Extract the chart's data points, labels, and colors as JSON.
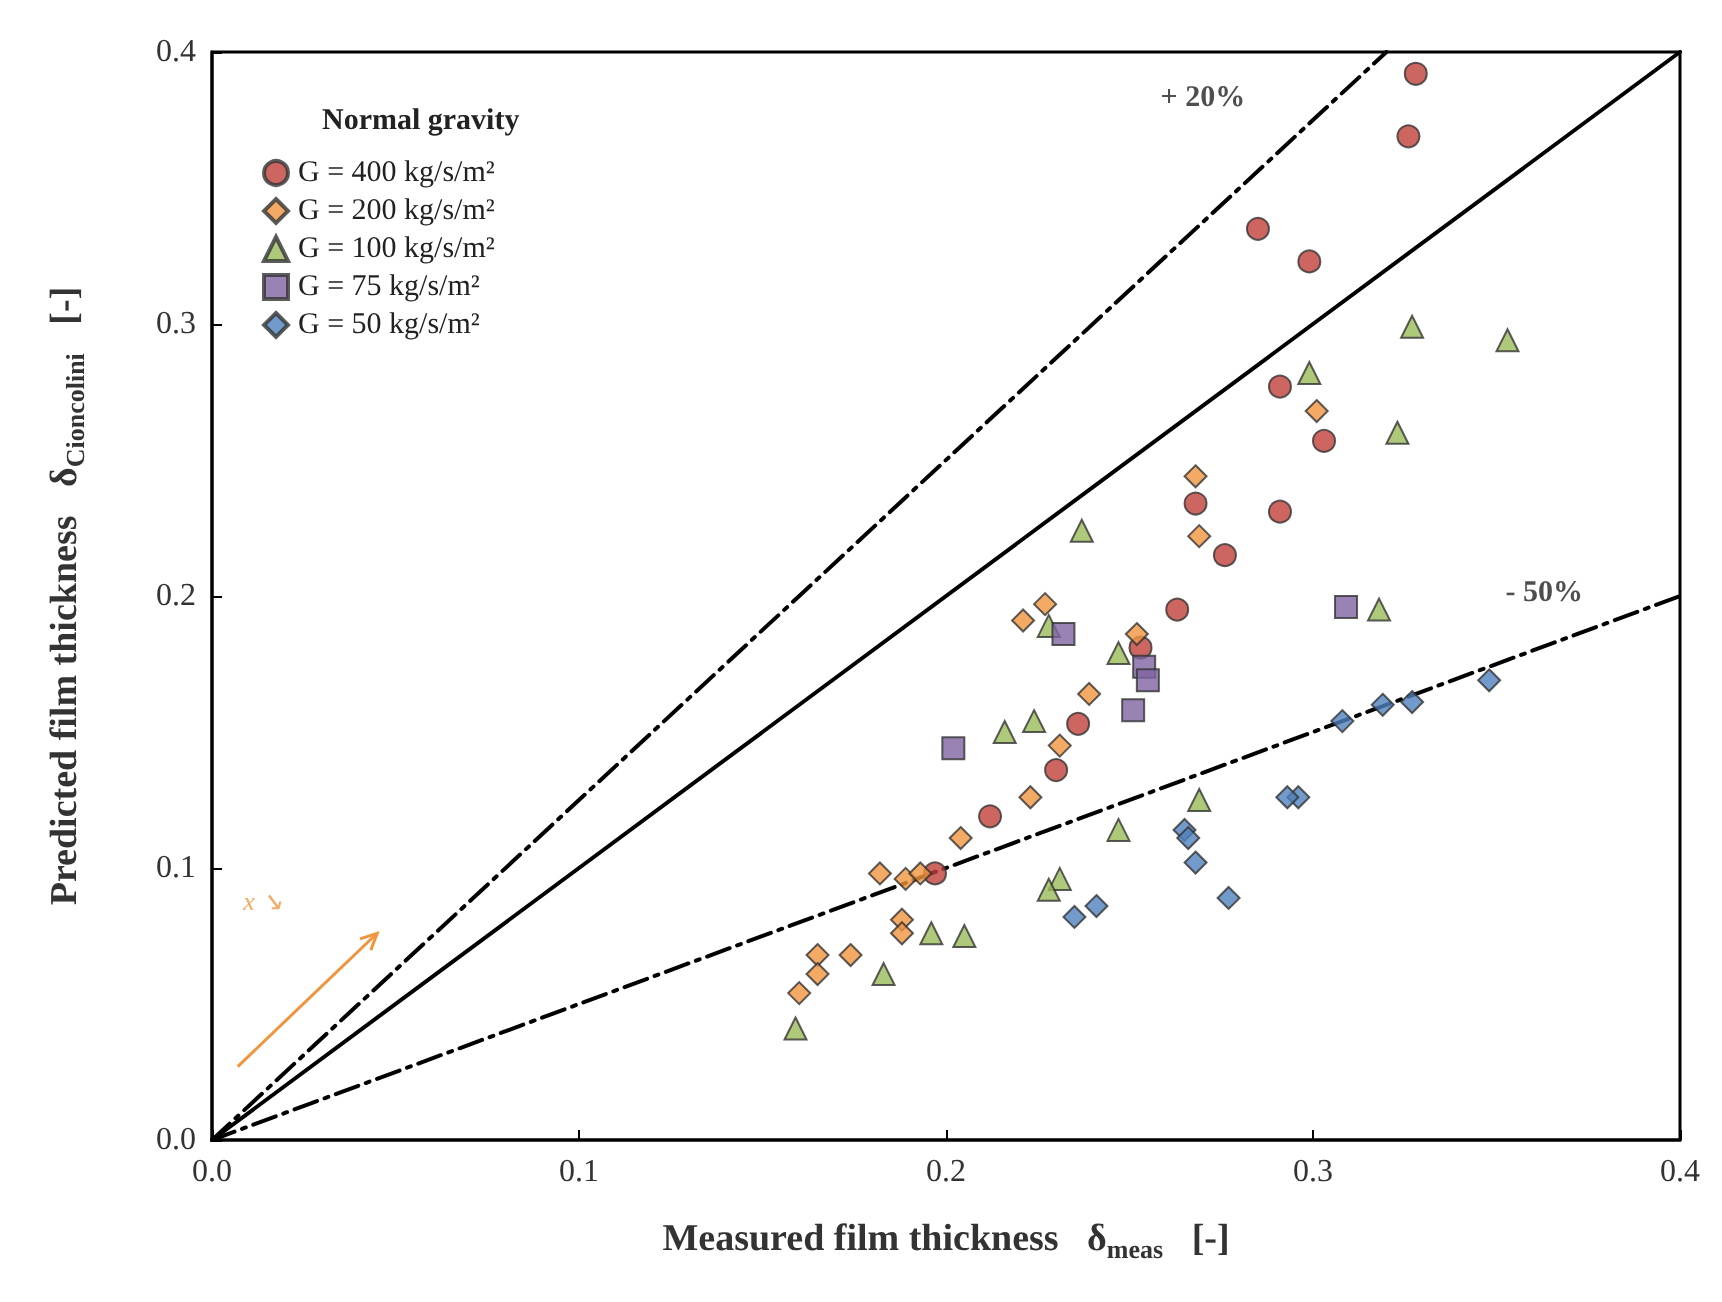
{
  "chart_data": {
    "type": "scatter",
    "xlabel": "Measured film thickness   δ$_{meas}$   [-]",
    "ylabel": "Predicted film thickness   δ$_{Cioncolini}$   [-]",
    "legend_title": "Normal gravity",
    "legend": "top left",
    "grid": false,
    "xlim": [
      0,
      0.4
    ],
    "xticks": [
      {
        "value": 0,
        "label": "0.0"
      },
      0.1,
      0.2,
      0.3,
      0.4
    ],
    "ylim": [
      0,
      0.4
    ],
    "yticks": [
      {
        "value": 0,
        "label": "0.0"
      },
      0.1,
      0.2,
      0.3,
      0.4
    ],
    "series": [
      {
        "name": "G = 400 kg/s/m²",
        "color": "#c0403a",
        "marker": "circle",
        "x": [
          0.328,
          0.326,
          0.285,
          0.299,
          0.291,
          0.303,
          0.268,
          0.291,
          0.276,
          0.263,
          0.253,
          0.236,
          0.23,
          0.212,
          0.197
        ],
        "values": [
          0.392,
          0.369,
          0.335,
          0.323,
          0.277,
          0.257,
          0.234,
          0.231,
          0.215,
          0.195,
          0.181,
          0.153,
          0.136,
          0.119,
          0.098
        ]
      },
      {
        "name": "G = 200 kg/s/m²",
        "color": "#f0953e",
        "marker": "diamond",
        "x": [
          0.268,
          0.269,
          0.301,
          0.227,
          0.221,
          0.252,
          0.239,
          0.231,
          0.223,
          0.204,
          0.182,
          0.189,
          0.193,
          0.188,
          0.188,
          0.165,
          0.174,
          0.165,
          0.16
        ],
        "values": [
          0.244,
          0.222,
          0.268,
          0.197,
          0.191,
          0.186,
          0.164,
          0.145,
          0.126,
          0.111,
          0.098,
          0.096,
          0.098,
          0.081,
          0.076,
          0.068,
          0.068,
          0.061,
          0.054
        ]
      },
      {
        "name": "G = 100 kg/s/m²",
        "color": "#9bbb59",
        "marker": "triangle",
        "x": [
          0.327,
          0.353,
          0.299,
          0.323,
          0.237,
          0.318,
          0.228,
          0.247,
          0.216,
          0.224,
          0.269,
          0.247,
          0.231,
          0.228,
          0.196,
          0.205,
          0.183,
          0.159
        ],
        "values": [
          0.299,
          0.294,
          0.282,
          0.26,
          0.224,
          0.195,
          0.189,
          0.179,
          0.15,
          0.154,
          0.125,
          0.114,
          0.096,
          0.092,
          0.076,
          0.075,
          0.061,
          0.041
        ]
      },
      {
        "name": "G = 75 kg/s/m²",
        "color": "#8064a2",
        "marker": "square",
        "x": [
          0.309,
          0.232,
          0.254,
          0.255,
          0.251,
          0.202
        ],
        "values": [
          0.196,
          0.186,
          0.174,
          0.169,
          0.158,
          0.144
        ]
      },
      {
        "name": "G = 50 kg/s/m²",
        "color": "#4f81bd",
        "marker": "diamond",
        "x": [
          0.348,
          0.327,
          0.319,
          0.308,
          0.296,
          0.293,
          0.265,
          0.266,
          0.268,
          0.277,
          0.241,
          0.235
        ],
        "values": [
          0.169,
          0.161,
          0.16,
          0.154,
          0.126,
          0.126,
          0.114,
          0.111,
          0.102,
          0.089,
          0.086,
          0.082
        ]
      },
      {
        "type": "line",
        "color": "#000000",
        "line_style": "solid",
        "x": [
          0,
          0.4
        ],
        "values": [
          0,
          0.4
        ]
      },
      {
        "type": "line",
        "color": "#000000",
        "line_style": "dashed",
        "x": [
          0,
          0.32
        ],
        "values": [
          0,
          0.4
        ]
      },
      {
        "type": "line",
        "color": "#000000",
        "line_style": "dashed",
        "x": [
          0,
          0.4
        ],
        "values": [
          0,
          0.2
        ]
      }
    ],
    "annotations": [
      "+ 20%",
      "- 50%",
      "x ↘"
    ]
  }
}
